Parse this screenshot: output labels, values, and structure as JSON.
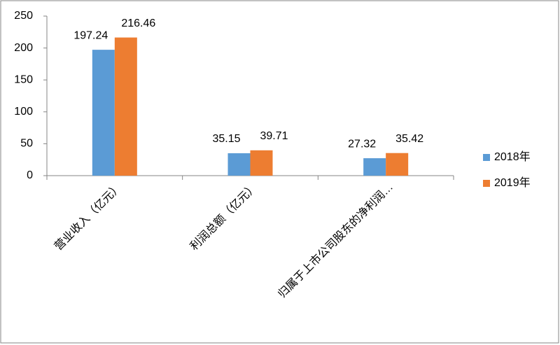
{
  "chart_data": {
    "type": "bar",
    "categories": [
      "营业收入（亿元）",
      "利润总额（亿元）",
      "归属于上市公司股东的净利润…"
    ],
    "series": [
      {
        "name": "2018年",
        "color": "#5b9bd5",
        "values": [
          197.24,
          35.15,
          27.32
        ]
      },
      {
        "name": "2019年",
        "color": "#ed7d31",
        "values": [
          216.46,
          39.71,
          35.42
        ]
      }
    ],
    "ylim": [
      0,
      250
    ],
    "yticks": [
      0,
      50,
      100,
      150,
      200,
      250
    ],
    "grid": false,
    "legend": "right"
  }
}
